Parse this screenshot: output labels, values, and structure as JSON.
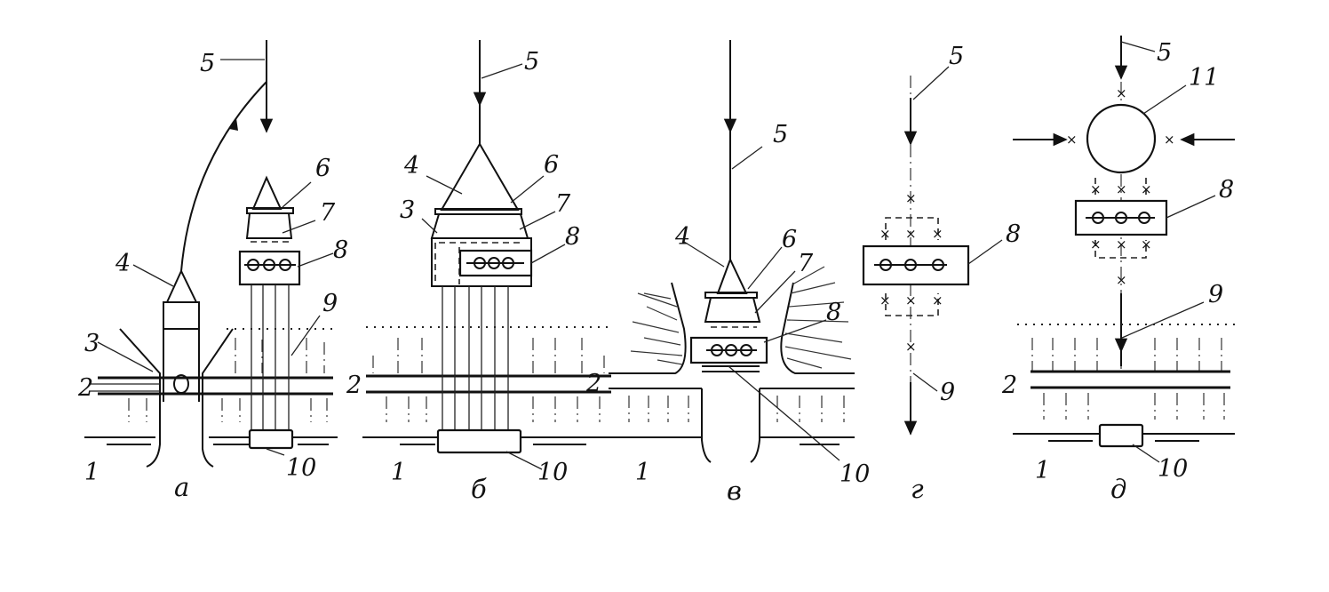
{
  "figure": {
    "panels": [
      {
        "id": "a",
        "caption": "а",
        "labels": [
          "1",
          "2",
          "3",
          "4",
          "5",
          "6",
          "7",
          "8",
          "9",
          "10"
        ]
      },
      {
        "id": "b",
        "caption": "б",
        "labels": [
          "1",
          "2",
          "3",
          "4",
          "5",
          "6",
          "7",
          "8",
          "10"
        ]
      },
      {
        "id": "c",
        "caption": "в",
        "labels": [
          "1",
          "2",
          "4",
          "5",
          "6",
          "7",
          "8",
          "10"
        ]
      },
      {
        "id": "d",
        "caption": "г",
        "labels": [
          "5",
          "8",
          "9"
        ]
      },
      {
        "id": "e",
        "caption": "д",
        "labels": [
          "1",
          "2",
          "5",
          "8",
          "9",
          "10",
          "11"
        ]
      }
    ]
  }
}
